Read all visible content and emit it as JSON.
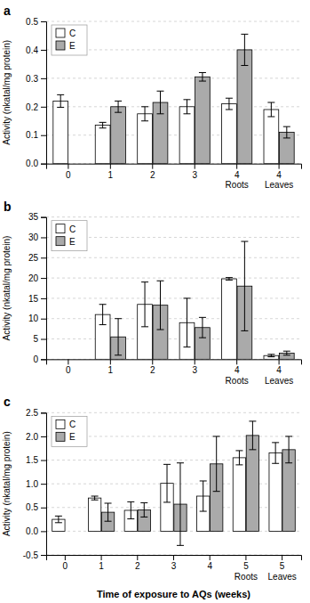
{
  "chart_data": [
    {
      "type": "bar",
      "title": "a",
      "ylabel": "Activity (nkatal/mg protein)",
      "categories": [
        "0",
        "1",
        "2",
        "3",
        "4\nRoots",
        "4\nLeaves"
      ],
      "series": [
        {
          "name": "C",
          "color": "#ffffff",
          "values": [
            0.22,
            0.135,
            0.175,
            0.2,
            0.21,
            0.19
          ],
          "errors": [
            0.022,
            0.01,
            0.025,
            0.025,
            0.02,
            0.025
          ]
        },
        {
          "name": "E",
          "color": "#aaaaaa",
          "values": [
            null,
            0.2,
            0.215,
            0.305,
            0.4,
            0.11
          ],
          "errors": [
            null,
            0.02,
            0.04,
            0.015,
            0.055,
            0.02
          ]
        }
      ],
      "ylim": [
        0,
        0.5
      ],
      "yticks": [
        {
          "value": 0,
          "label": "0.0"
        },
        0.1,
        0.2,
        0.3,
        0.4,
        0.5
      ],
      "grid": true,
      "legend": "upper left"
    },
    {
      "type": "bar",
      "title": "b",
      "ylabel": "Activity (nkatal/mg protein)",
      "categories": [
        "0",
        "1",
        "2",
        "3",
        "4\nRoots",
        "4\nLeaves"
      ],
      "series": [
        {
          "name": "C",
          "color": "#ffffff",
          "values": [
            null,
            11.0,
            13.5,
            9.0,
            19.8,
            0.9
          ],
          "errors": [
            null,
            2.5,
            5.5,
            6.0,
            0.3,
            0.3
          ]
        },
        {
          "name": "E",
          "color": "#aaaaaa",
          "values": [
            null,
            5.5,
            13.3,
            7.8,
            18.0,
            1.5
          ],
          "errors": [
            null,
            4.5,
            6.0,
            2.5,
            11.0,
            0.5
          ]
        }
      ],
      "ylim": [
        0,
        35
      ],
      "yticks": [
        0,
        5,
        10,
        15,
        20,
        25,
        30,
        35
      ],
      "grid": true,
      "legend": "upper left"
    },
    {
      "type": "bar",
      "title": "c",
      "ylabel": "Activity (nkatal/mg protein)",
      "xlabel": "Time of exposure to AQs (weeks)",
      "categories": [
        "0",
        "1",
        "2",
        "3",
        "4",
        "5\nRoots",
        "5\nLeaves"
      ],
      "series": [
        {
          "name": "C",
          "color": "#ffffff",
          "values": [
            0.25,
            0.7,
            0.44,
            1.01,
            0.74,
            1.55,
            1.65
          ],
          "errors": [
            0.07,
            0.04,
            0.18,
            0.4,
            0.32,
            0.15,
            0.22
          ]
        },
        {
          "name": "E",
          "color": "#aaaaaa",
          "values": [
            null,
            0.4,
            0.45,
            0.57,
            1.42,
            2.02,
            1.72
          ],
          "errors": [
            null,
            0.19,
            0.15,
            0.87,
            0.58,
            0.3,
            0.28
          ]
        }
      ],
      "ylim": [
        -0.5,
        2.5
      ],
      "yticks": [
        -0.5,
        {
          "value": 0,
          "label": "0.0"
        },
        0.5,
        {
          "value": 1,
          "label": "1.0"
        },
        1.5,
        {
          "value": 2,
          "label": "2.0"
        },
        2.5
      ],
      "grid": true,
      "legend": "upper left"
    }
  ]
}
